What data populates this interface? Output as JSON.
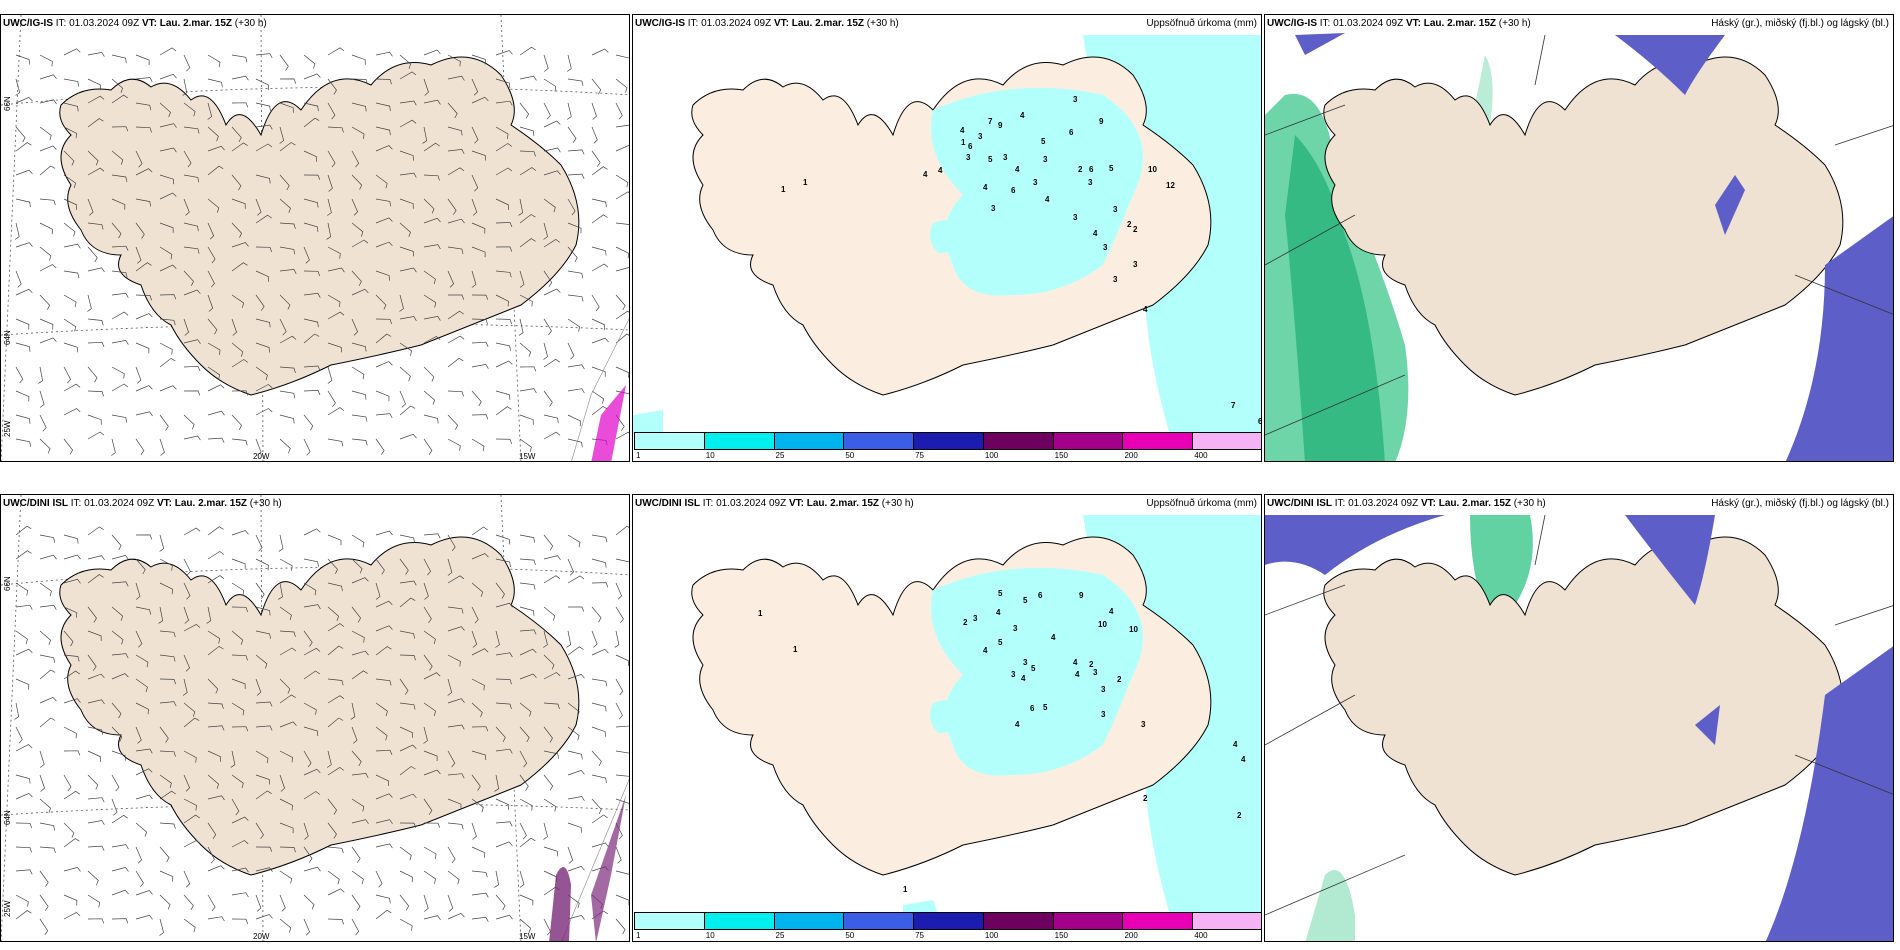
{
  "colors": {
    "land": "#efe2d2",
    "precip_light": "#b3fffb",
    "coast": "#000000",
    "graupel": "#1fbf7a",
    "snow": "#5e5ec8",
    "wind_barb": "#444444"
  },
  "top_row": {
    "wind": {
      "model": "UWC/IG-IS",
      "it_text": "IT: 01.03.2024 09Z",
      "vt_label": "VT:",
      "vt_value": "Lau. 2.mar. 15Z",
      "lead": "(+30 h)",
      "grid_labels": {
        "lat1": "66N",
        "lat2": "64N",
        "lon1": "20W",
        "lon2": "15W",
        "lon3": "25W"
      }
    },
    "precip": {
      "model": "UWC/IG-IS",
      "it_text": "IT: 01.03.2024 09Z",
      "vt_label": "VT:",
      "vt_value": "Lau. 2.mar. 15Z",
      "lead": "(+30 h)",
      "right_title": "Uppsöfnuð úrkoma (mm)",
      "values": [
        "7",
        "9",
        "4",
        "3",
        "1",
        "4",
        "3",
        "3",
        "4",
        "5",
        "4",
        "9",
        "6",
        "3",
        "5",
        "3",
        "10",
        "12",
        "4",
        "6",
        "3",
        "4",
        "3",
        "1",
        "6",
        "4",
        "1",
        "2",
        "4",
        "2",
        "3",
        "3",
        "3",
        "5",
        "6",
        "2",
        "3",
        "3",
        "4",
        "7",
        "6",
        "3"
      ]
    },
    "cloud": {
      "model": "UWC/IG-IS",
      "it_text": "IT: 01.03.2024 09Z",
      "vt_label": "VT:",
      "vt_value": "Lau. 2.mar. 15Z",
      "lead": "(+30 h)",
      "right_title": "Háský (gr.), miðský (fj.bl.) og lágský (bl.)"
    }
  },
  "bottom_row": {
    "wind": {
      "model": "UWC/DINI ISL",
      "it_text": "IT: 01.03.2024 09Z",
      "vt_label": "VT:",
      "vt_value": "Lau. 2.mar. 15Z",
      "lead": "(+30 h)",
      "grid_labels": {
        "lat1": "66N",
        "lat2": "64N",
        "lon1": "20W",
        "lon2": "15W",
        "lon3": "25W"
      }
    },
    "precip": {
      "model": "UWC/DINI ISL",
      "it_text": "IT: 01.03.2024 09Z",
      "vt_label": "VT:",
      "vt_value": "Lau. 2.mar. 15Z",
      "lead": "(+30 h)",
      "right_title": "Uppsöfnuð úrkoma (mm)",
      "values": [
        "5",
        "3",
        "2",
        "5",
        "6",
        "4",
        "3",
        "9",
        "1",
        "5",
        "4",
        "3",
        "10",
        "1",
        "4",
        "4",
        "4",
        "3",
        "10",
        "2",
        "6",
        "3",
        "2",
        "4",
        "2",
        "3",
        "5",
        "4",
        "3",
        "1",
        "5",
        "4",
        "3",
        "4",
        "4",
        "2"
      ]
    },
    "cloud": {
      "model": "UWC/DINI ISL",
      "it_text": "IT: 01.03.2024 09Z",
      "vt_label": "VT:",
      "vt_value": "Lau. 2.mar. 15Z",
      "lead": "(+30 h)",
      "right_title": "Háský (gr.), miðský (fj.bl.) og lágský (bl.)"
    }
  },
  "colorbar": {
    "colors": [
      "#b3fffb",
      "#00eeee",
      "#00b4ee",
      "#3a5fe6",
      "#1c1cb0",
      "#6e0060",
      "#a3008c",
      "#e800b4",
      "#f5b3f5"
    ],
    "ticks": [
      "1",
      "10",
      "25",
      "50",
      "75",
      "100",
      "150",
      "200",
      "400"
    ]
  }
}
